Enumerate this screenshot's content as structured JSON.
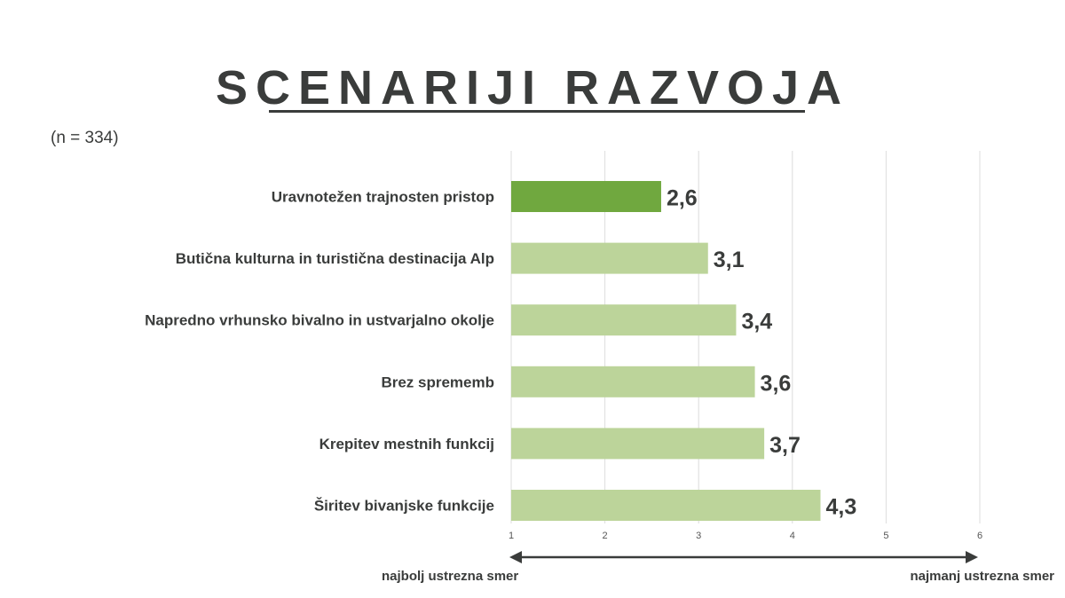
{
  "title": "SCENARIJI RAZVOJA",
  "subtitle": "(n = 334)",
  "colors": {
    "highlight": "#70a83f",
    "bar": "#bcd49a",
    "text": "#3a3c3b",
    "grid": "#dcdcdc"
  },
  "chart_data": {
    "type": "bar",
    "orientation": "horizontal",
    "categories": [
      "Uravnotežen trajnosten pristop",
      "Butična kulturna in turistična destinacija Alp",
      "Napredno vrhunsko bivalno in ustvarjalno okolje",
      "Brez sprememb",
      "Krepitev mestnih funkcij",
      "Širitev bivanjske funkcije"
    ],
    "values": [
      2.6,
      3.1,
      3.4,
      3.6,
      3.7,
      4.3
    ],
    "value_labels": [
      "2,6",
      "3,1",
      "3,4",
      "3,6",
      "3,7",
      "4,3"
    ],
    "highlight_index": 0,
    "xlim": [
      1,
      6
    ],
    "x_ticks": [
      "1",
      "2",
      "3",
      "4",
      "5",
      "6"
    ],
    "grid": true
  },
  "axis_arrow": {
    "left_label": "najbolj ustrezna smer",
    "right_label": "najmanj ustrezna smer"
  }
}
